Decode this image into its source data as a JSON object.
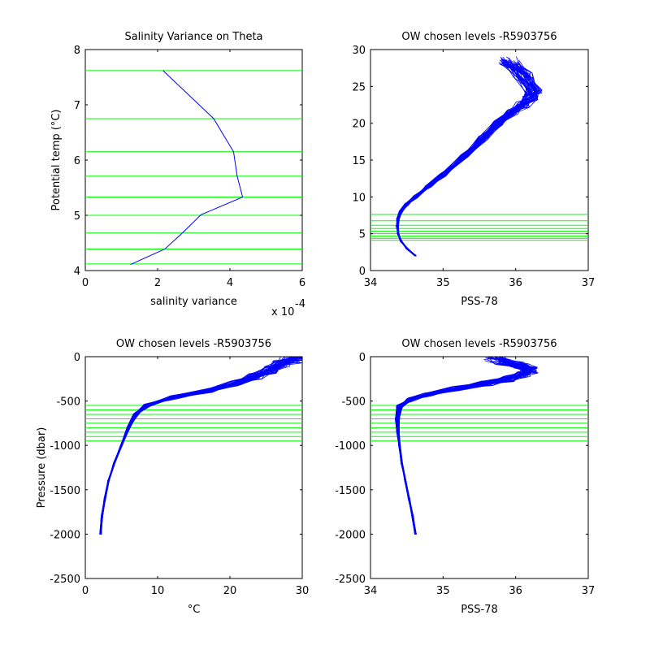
{
  "figure": {
    "background": "#ffffff",
    "levels_color": "#00ff00",
    "profile_color": "#0000ff"
  },
  "chart_data": [
    {
      "type": "line",
      "title": "Salinity Variance on Theta",
      "xlabel": "salinity variance",
      "ylabel": "Potential temp (°C)",
      "x_exponent_label": "x 10",
      "x_exponent_power": "-4",
      "xlim": [
        0,
        6
      ],
      "ylim": [
        4,
        8
      ],
      "xticks": [
        "0",
        "2",
        "4",
        "6"
      ],
      "yticks": [
        "4",
        "5",
        "6",
        "7",
        "8"
      ],
      "grid": false,
      "series": [
        {
          "x": [
            1.25,
            2.2,
            2.7,
            3.2,
            4.35,
            4.2,
            4.1,
            3.55,
            2.15
          ],
          "y": [
            4.11,
            4.39,
            4.69,
            5.01,
            5.33,
            5.71,
            6.15,
            6.75,
            7.62
          ]
        }
      ],
      "hlines": [
        4.12,
        4.39,
        4.68,
        5.0,
        5.33,
        5.71,
        6.15,
        6.75,
        7.62
      ]
    },
    {
      "type": "line",
      "title": "OW chosen levels -R5903756",
      "xlabel": "PSS-78",
      "ylabel": "",
      "xlim": [
        34,
        37
      ],
      "ylim": [
        0,
        30
      ],
      "xticks": [
        "34",
        "35",
        "36",
        "37"
      ],
      "yticks": [
        "0",
        "5",
        "10",
        "15",
        "20",
        "25",
        "30"
      ],
      "grid": false,
      "profile_center": {
        "x": [
          34.62,
          34.5,
          34.42,
          34.38,
          34.37,
          34.38,
          34.42,
          34.5,
          34.62,
          34.8,
          35.0,
          35.3,
          35.55,
          35.75,
          35.95,
          36.1,
          36.2,
          36.25,
          36.1,
          35.9
        ],
        "y": [
          2,
          3,
          4,
          5,
          6,
          7,
          8,
          9,
          10,
          11.5,
          13,
          15.5,
          18,
          20,
          21.5,
          22.5,
          23.5,
          24.5,
          26.5,
          28.5
        ]
      },
      "hlines": [
        4.12,
        4.39,
        4.68,
        5.0,
        5.33,
        5.71,
        6.15,
        6.75,
        7.62
      ]
    },
    {
      "type": "line",
      "title": "OW chosen levels -R5903756",
      "xlabel": "°C",
      "ylabel": "Pressure (dbar)",
      "xlim": [
        0,
        30
      ],
      "ylim": [
        -2500,
        0
      ],
      "xticks": [
        "0",
        "10",
        "20",
        "30"
      ],
      "yticks": [
        "0",
        "-500",
        "-1000",
        "-1500",
        "-2000",
        "-2500"
      ],
      "grid": false,
      "profile_center": {
        "x": [
          2.1,
          2.3,
          2.7,
          3.2,
          4.0,
          5.0,
          6.0,
          7.0,
          8.5,
          12,
          17,
          21,
          23.5,
          25.5,
          27,
          28.5,
          29.5
        ],
        "y": [
          -2000,
          -1800,
          -1600,
          -1400,
          -1200,
          -1000,
          -800,
          -650,
          -550,
          -460,
          -380,
          -300,
          -220,
          -150,
          -80,
          -30,
          0
        ]
      },
      "hlines": [
        -550,
        -600,
        -650,
        -700,
        -750,
        -800,
        -850,
        -900,
        -950
      ]
    },
    {
      "type": "line",
      "title": "OW chosen levels -R5903756",
      "xlabel": "PSS-78",
      "ylabel": "",
      "xlim": [
        34,
        37
      ],
      "ylim": [
        -2500,
        0
      ],
      "xticks": [
        "34",
        "35",
        "36",
        "37"
      ],
      "yticks": [
        "0",
        "-500",
        "-1000",
        "-1500",
        "-2000",
        "-2500"
      ],
      "grid": false,
      "profile_center": {
        "x": [
          34.62,
          34.58,
          34.53,
          34.48,
          34.43,
          34.4,
          34.38,
          34.37,
          34.4,
          34.55,
          34.8,
          35.2,
          35.6,
          35.9,
          36.1,
          36.2,
          36.05,
          35.85,
          35.7
        ],
        "y": [
          -2000,
          -1800,
          -1600,
          -1400,
          -1200,
          -1000,
          -850,
          -700,
          -560,
          -480,
          -420,
          -360,
          -300,
          -250,
          -200,
          -150,
          -100,
          -50,
          -10
        ]
      },
      "hlines": [
        -550,
        -600,
        -650,
        -700,
        -750,
        -800,
        -850,
        -900,
        -950
      ]
    }
  ]
}
